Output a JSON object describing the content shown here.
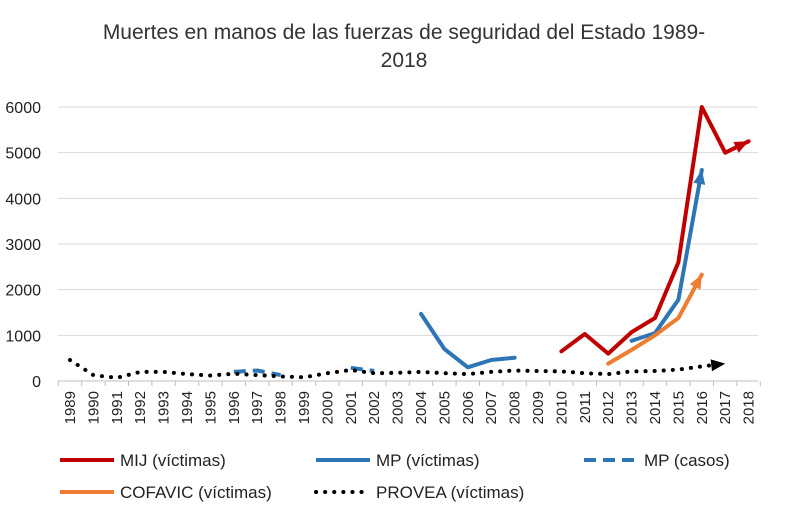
{
  "chart_data": {
    "type": "line",
    "title_line1": "Muertes en manos de las fuerzas de seguridad del Estado 1989-",
    "title_line2": "2018",
    "xlabel": "",
    "ylabel": "",
    "ylim": [
      0,
      6000
    ],
    "yticks": [
      0,
      1000,
      2000,
      3000,
      4000,
      5000,
      6000
    ],
    "x": [
      1989,
      1990,
      1991,
      1992,
      1993,
      1994,
      1995,
      1996,
      1997,
      1998,
      1999,
      2000,
      2001,
      2002,
      2003,
      2004,
      2005,
      2006,
      2007,
      2008,
      2009,
      2010,
      2011,
      2012,
      2013,
      2014,
      2015,
      2016,
      2017,
      2018
    ],
    "grid": true,
    "legend_position": "bottom",
    "series": [
      {
        "name": "MIJ (víctimas)",
        "color": "#c00000",
        "style": "solid",
        "arrow": true,
        "points": [
          [
            2010,
            650
          ],
          [
            2011,
            1030
          ],
          [
            2012,
            600
          ],
          [
            2013,
            1070
          ],
          [
            2014,
            1380
          ],
          [
            2015,
            2600
          ],
          [
            2016,
            6000
          ],
          [
            2017,
            5000
          ],
          [
            2018,
            5250
          ]
        ]
      },
      {
        "name": "MP (víctimas)",
        "color": "#2e75b6",
        "style": "solid",
        "arrow": false,
        "points": [
          [
            2004,
            1470
          ],
          [
            2005,
            700
          ],
          [
            2006,
            300
          ],
          [
            2007,
            460
          ],
          [
            2008,
            510
          ]
        ]
      },
      {
        "name": "MP (víctimas)",
        "color": "#2e75b6",
        "style": "solid",
        "arrow": true,
        "legend": false,
        "points": [
          [
            2013,
            880
          ],
          [
            2014,
            1050
          ],
          [
            2015,
            1780
          ],
          [
            2016,
            4620
          ]
        ]
      },
      {
        "name": "MP (casos)",
        "color": "#2e75b6",
        "style": "dashed",
        "arrow": false,
        "points": [
          [
            1996,
            200
          ],
          [
            1997,
            230
          ],
          [
            1998,
            130
          ]
        ]
      },
      {
        "name": "MP (casos)",
        "color": "#2e75b6",
        "style": "dashed",
        "arrow": false,
        "legend": false,
        "points": [
          [
            2001,
            290
          ],
          [
            2002,
            220
          ]
        ]
      },
      {
        "name": "COFAVIC (víctimas)",
        "color": "#ed7d31",
        "style": "solid",
        "arrow": true,
        "points": [
          [
            2012,
            380
          ],
          [
            2013,
            680
          ],
          [
            2014,
            1000
          ],
          [
            2015,
            1380
          ],
          [
            2016,
            2330
          ]
        ]
      },
      {
        "name": "PROVEA (víctimas)",
        "color": "#000000",
        "style": "dotted",
        "arrow": true,
        "points": [
          [
            1989,
            460
          ],
          [
            1990,
            130
          ],
          [
            1991,
            70
          ],
          [
            1992,
            200
          ],
          [
            1993,
            200
          ],
          [
            1994,
            150
          ],
          [
            1995,
            120
          ],
          [
            1996,
            160
          ],
          [
            1997,
            130
          ],
          [
            1998,
            100
          ],
          [
            1999,
            80
          ],
          [
            2000,
            170
          ],
          [
            2001,
            240
          ],
          [
            2002,
            170
          ],
          [
            2003,
            180
          ],
          [
            2004,
            200
          ],
          [
            2005,
            170
          ],
          [
            2006,
            150
          ],
          [
            2007,
            200
          ],
          [
            2008,
            230
          ],
          [
            2009,
            220
          ],
          [
            2010,
            210
          ],
          [
            2011,
            170
          ],
          [
            2012,
            150
          ],
          [
            2013,
            210
          ],
          [
            2014,
            220
          ],
          [
            2015,
            250
          ],
          [
            2016,
            320
          ],
          [
            2017,
            380
          ]
        ]
      }
    ],
    "legend": [
      {
        "label": "MIJ (víctimas)",
        "color": "#c00000",
        "style": "solid"
      },
      {
        "label": "MP (víctimas)",
        "color": "#2e75b6",
        "style": "solid"
      },
      {
        "label": "MP (casos)",
        "color": "#2e75b6",
        "style": "dashed"
      },
      {
        "label": "COFAVIC (víctimas)",
        "color": "#ed7d31",
        "style": "solid"
      },
      {
        "label": "PROVEA (víctimas)",
        "color": "#000000",
        "style": "dotted"
      }
    ]
  }
}
